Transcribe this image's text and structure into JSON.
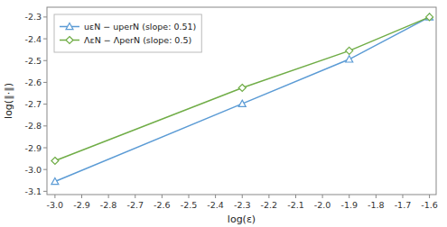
{
  "chart_data": {
    "type": "line",
    "x": [
      -3.0,
      -2.3,
      -1.9,
      -1.6
    ],
    "series": [
      {
        "name": "uεN − uperN (slope: 0.51)",
        "color": "#5b9bd5",
        "marker": "triangle",
        "values": [
          -3.055,
          -2.698,
          -2.494,
          -2.3
        ]
      },
      {
        "name": "ΛεN − ΛperN (slope: 0.5)",
        "color": "#70ad47",
        "marker": "diamond",
        "values": [
          -2.96,
          -2.625,
          -2.455,
          -2.3
        ]
      }
    ],
    "xlabel": "log(ε)",
    "ylabel": "log(‖·‖)",
    "xlim": [
      -3.03,
      -1.575
    ],
    "ylim": [
      -3.115,
      -2.255
    ],
    "xticks": [
      {
        "value": -3.0,
        "label": "-3.0"
      },
      -2.9,
      -2.8,
      -2.7,
      -2.6,
      -2.5,
      -2.4,
      -2.3,
      -2.2,
      -2.1,
      {
        "value": -2.0,
        "label": "-2.0"
      },
      -1.9,
      -1.8,
      -1.7,
      -1.6
    ],
    "yticks": [
      -3.1,
      {
        "value": -3.0,
        "label": "-3.0"
      },
      -2.9,
      -2.8,
      -2.7,
      -2.6,
      -2.5,
      -2.4,
      -2.3
    ],
    "grid": false,
    "legend": "upper left"
  }
}
